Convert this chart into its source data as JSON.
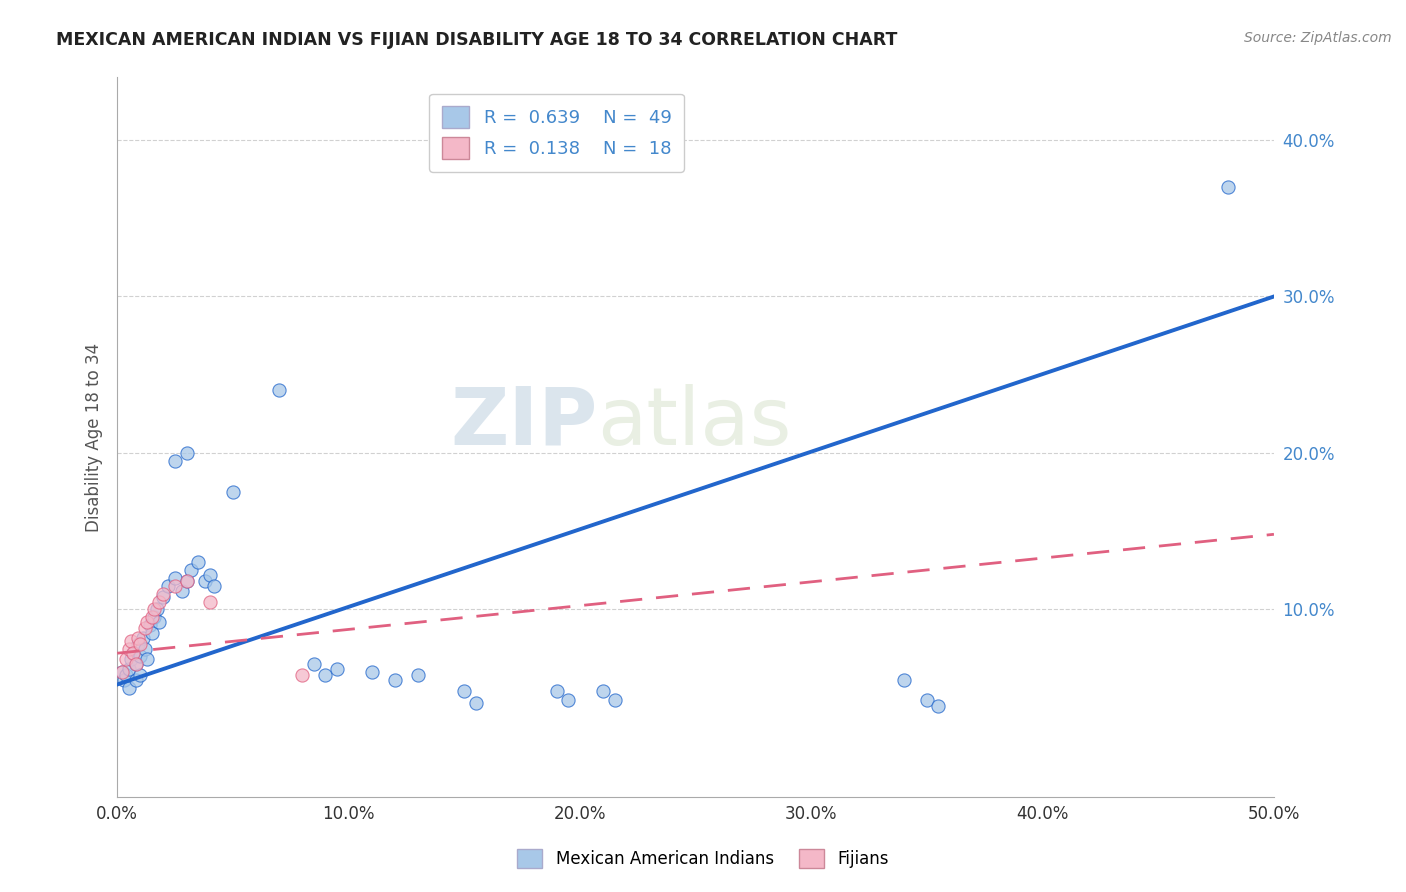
{
  "title": "MEXICAN AMERICAN INDIAN VS FIJIAN DISABILITY AGE 18 TO 34 CORRELATION CHART",
  "source": "Source: ZipAtlas.com",
  "ylabel": "Disability Age 18 to 34",
  "xlim": [
    0.0,
    0.5
  ],
  "ylim": [
    -0.02,
    0.44
  ],
  "xticks": [
    0.0,
    0.1,
    0.2,
    0.3,
    0.4,
    0.5
  ],
  "xtick_labels": [
    "0.0%",
    "10.0%",
    "20.0%",
    "30.0%",
    "40.0%",
    "50.0%"
  ],
  "yticks": [
    0.1,
    0.2,
    0.3,
    0.4
  ],
  "ytick_labels": [
    "10.0%",
    "20.0%",
    "30.0%",
    "40.0%"
  ],
  "blue_color": "#a8c8e8",
  "pink_color": "#f4b8c8",
  "line_blue": "#2266cc",
  "line_pink": "#e06080",
  "watermark_zip": "ZIP",
  "watermark_atlas": "atlas",
  "title_color": "#222222",
  "axis_label_color": "#555555",
  "legend_text_color": "#4488cc",
  "tick_color": "#4488cc",
  "blue_scatter": [
    [
      0.002,
      0.06
    ],
    [
      0.003,
      0.055
    ],
    [
      0.004,
      0.058
    ],
    [
      0.005,
      0.062
    ],
    [
      0.005,
      0.05
    ],
    [
      0.006,
      0.068
    ],
    [
      0.007,
      0.072
    ],
    [
      0.008,
      0.065
    ],
    [
      0.008,
      0.055
    ],
    [
      0.009,
      0.078
    ],
    [
      0.01,
      0.07
    ],
    [
      0.01,
      0.058
    ],
    [
      0.011,
      0.082
    ],
    [
      0.012,
      0.075
    ],
    [
      0.013,
      0.068
    ],
    [
      0.014,
      0.09
    ],
    [
      0.015,
      0.085
    ],
    [
      0.016,
      0.095
    ],
    [
      0.017,
      0.1
    ],
    [
      0.018,
      0.092
    ],
    [
      0.02,
      0.108
    ],
    [
      0.022,
      0.115
    ],
    [
      0.025,
      0.12
    ],
    [
      0.028,
      0.112
    ],
    [
      0.03,
      0.118
    ],
    [
      0.032,
      0.125
    ],
    [
      0.035,
      0.13
    ],
    [
      0.038,
      0.118
    ],
    [
      0.04,
      0.122
    ],
    [
      0.042,
      0.115
    ],
    [
      0.025,
      0.195
    ],
    [
      0.03,
      0.2
    ],
    [
      0.05,
      0.175
    ],
    [
      0.07,
      0.24
    ],
    [
      0.085,
      0.065
    ],
    [
      0.09,
      0.058
    ],
    [
      0.095,
      0.062
    ],
    [
      0.11,
      0.06
    ],
    [
      0.12,
      0.055
    ],
    [
      0.13,
      0.058
    ],
    [
      0.15,
      0.048
    ],
    [
      0.155,
      0.04
    ],
    [
      0.19,
      0.048
    ],
    [
      0.195,
      0.042
    ],
    [
      0.21,
      0.048
    ],
    [
      0.215,
      0.042
    ],
    [
      0.34,
      0.055
    ],
    [
      0.35,
      0.042
    ],
    [
      0.355,
      0.038
    ],
    [
      0.48,
      0.37
    ]
  ],
  "pink_scatter": [
    [
      0.002,
      0.06
    ],
    [
      0.004,
      0.068
    ],
    [
      0.005,
      0.075
    ],
    [
      0.006,
      0.08
    ],
    [
      0.007,
      0.072
    ],
    [
      0.008,
      0.065
    ],
    [
      0.009,
      0.082
    ],
    [
      0.01,
      0.078
    ],
    [
      0.012,
      0.088
    ],
    [
      0.013,
      0.092
    ],
    [
      0.015,
      0.095
    ],
    [
      0.016,
      0.1
    ],
    [
      0.018,
      0.105
    ],
    [
      0.02,
      0.11
    ],
    [
      0.025,
      0.115
    ],
    [
      0.03,
      0.118
    ],
    [
      0.04,
      0.105
    ],
    [
      0.08,
      0.058
    ]
  ],
  "blue_trendline_x": [
    0.0,
    0.5
  ],
  "blue_trendline_y": [
    0.052,
    0.3
  ],
  "pink_trendline_x": [
    0.0,
    0.5
  ],
  "pink_trendline_y": [
    0.072,
    0.148
  ]
}
